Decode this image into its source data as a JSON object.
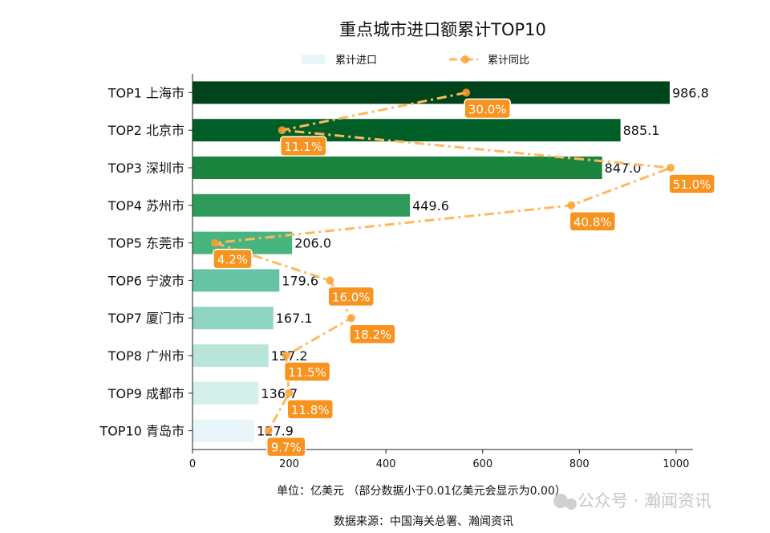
{
  "chart_data": {
    "type": "bar",
    "orientation": "horizontal",
    "title": "重点城市进口额累计TOP10",
    "categories": [
      "TOP1 上海市",
      "TOP2 北京市",
      "TOP3 深圳市",
      "TOP4 苏州市",
      "TOP5 东莞市",
      "TOP6 宁波市",
      "TOP7 厦门市",
      "TOP8 广州市",
      "TOP9 成都市",
      "TOP10 青岛市"
    ],
    "series": [
      {
        "name": "累计进口",
        "type": "bar",
        "values": [
          986.8,
          885.1,
          847.0,
          449.6,
          206.0,
          179.6,
          167.1,
          157.2,
          136.7,
          127.9
        ],
        "labels": [
          "986.8",
          "885.1",
          "847.0",
          "449.6",
          "206.0",
          "179.6",
          "167.1",
          "157.2",
          "136.7",
          "127.9"
        ],
        "colors": [
          "#00441b",
          "#005f26",
          "#1b843f",
          "#2e9b5a",
          "#48b57e",
          "#66c3a3",
          "#8fd4c0",
          "#b9e4da",
          "#d5efea",
          "#e8f5f9"
        ]
      },
      {
        "name": "累计同比",
        "type": "line",
        "axis": "secondary-hidden",
        "values": [
          30.0,
          11.1,
          51.0,
          40.8,
          4.2,
          16.0,
          18.2,
          11.5,
          11.8,
          9.7
        ],
        "labels": [
          "30.0%",
          "11.1%",
          "51.0%",
          "40.8%",
          "4.2%",
          "16.0%",
          "18.2%",
          "11.5%",
          "11.8%",
          "9.7%"
        ],
        "color": "#ffb85c",
        "marker_color": "#ff9f2e",
        "label_bg": "#f7931e"
      }
    ],
    "xlim": [
      0,
      1035
    ],
    "xticks": [
      "0",
      "200",
      "400",
      "600",
      "800",
      "1000"
    ],
    "xlabel": "单位：亿美元  （部分数据小于0.01亿美元会显示为0.00）",
    "source": "数据来源：中国海关总署、瀚闻资讯",
    "legend": {
      "placement": "top-center",
      "entries": [
        "累计进口",
        "累计同比"
      ]
    },
    "grid": false
  },
  "watermark": "公众号 · 瀚闻资讯"
}
